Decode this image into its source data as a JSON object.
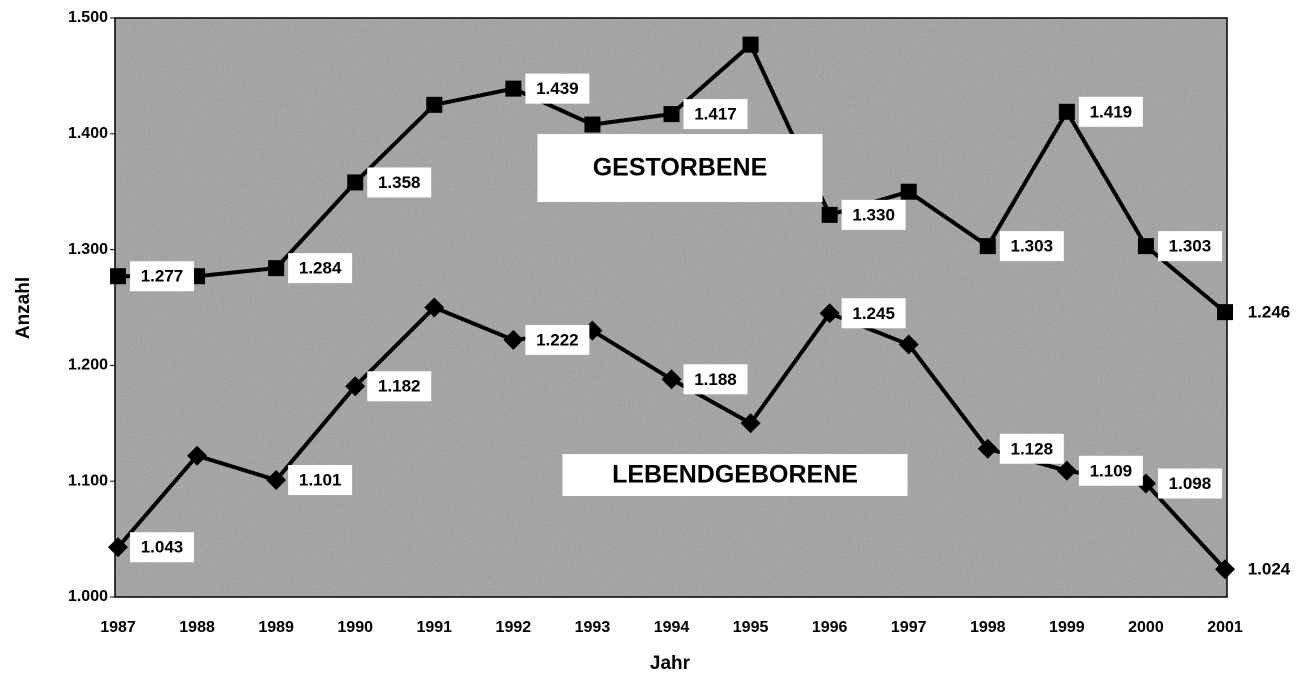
{
  "chart_data": {
    "type": "line",
    "x_label": "Jahr",
    "y_label": "Anzahl",
    "categories": [
      "1987",
      "1988",
      "1989",
      "1990",
      "1991",
      "1992",
      "1993",
      "1994",
      "1995",
      "1996",
      "1997",
      "1998",
      "1999",
      "2000",
      "2001"
    ],
    "series": [
      {
        "name": "GESTORBENE",
        "color": "#000000",
        "marker": "square",
        "values": [
          1277,
          1277,
          1284,
          1358,
          1425,
          1439,
          1408,
          1417,
          1477,
          1330,
          1350,
          1303,
          1419,
          1303,
          1246
        ],
        "value_labels": [
          "1.277",
          null,
          "1.284",
          "1.358",
          null,
          "1.439",
          null,
          "1.417",
          null,
          "1.330",
          null,
          "1.303",
          "1.419",
          "1.303",
          "1.246"
        ]
      },
      {
        "name": "LEBENDGEBORENE",
        "color": "#000000",
        "marker": "diamond",
        "values": [
          1043,
          1122,
          1101,
          1182,
          1250,
          1222,
          1230,
          1188,
          1150,
          1245,
          1218,
          1128,
          1109,
          1098,
          1024
        ],
        "value_labels": [
          "1.043",
          null,
          "1.101",
          "1.182",
          null,
          "1.222",
          null,
          "1.188",
          null,
          "1.245",
          null,
          "1.128",
          "1.109",
          "1.098",
          "1.024"
        ]
      }
    ],
    "ylim": [
      1000,
      1500
    ],
    "yticks": [
      {
        "value": 1000,
        "label": "1.000"
      },
      {
        "value": 1100,
        "label": "1.100"
      },
      {
        "value": 1200,
        "label": "1.200"
      },
      {
        "value": 1300,
        "label": "1.300"
      },
      {
        "value": 1400,
        "label": "1.400"
      },
      {
        "value": 1500,
        "label": "1.500"
      }
    ],
    "grid": false
  }
}
